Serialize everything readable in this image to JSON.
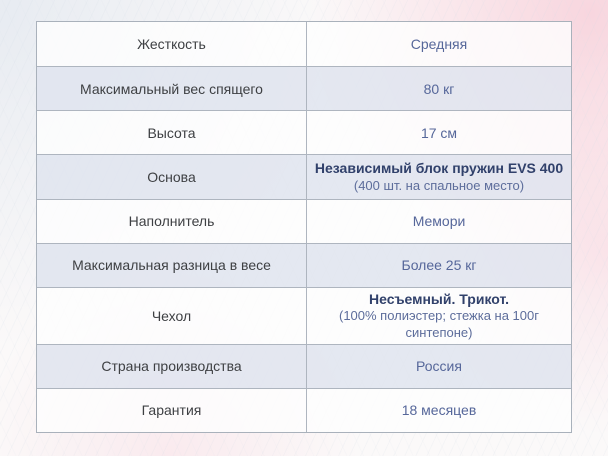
{
  "colors": {
    "label_text": "#3e4043",
    "value_text": "#56679a",
    "value_bold_text": "#31416b",
    "row_alt_bg": "#dee3ee",
    "border": "#aeb5bf",
    "page_pink_tint": "#f8d4dd"
  },
  "table": {
    "rows": [
      {
        "label": "Жесткость",
        "value": "Средняя"
      },
      {
        "label": "Максимальный вес спящего",
        "value": "80 кг"
      },
      {
        "label": "Высота",
        "value": "17 см"
      },
      {
        "label": "Основа",
        "value": "Независимый блок пружин EVS 400",
        "value2": "(400 шт. на спальное место)"
      },
      {
        "label": "Наполнитель",
        "value": "Мемори"
      },
      {
        "label": "Максимальная разница в весе",
        "value": "Более 25 кг"
      },
      {
        "label": "Чехол",
        "value": "Несъемный. Трикот.",
        "value2": "(100% полиэстер; стежка на 100г синтепоне)"
      },
      {
        "label": "Страна производства",
        "value": "Россия"
      },
      {
        "label": "Гарантия",
        "value": "18 месяцев"
      }
    ]
  }
}
